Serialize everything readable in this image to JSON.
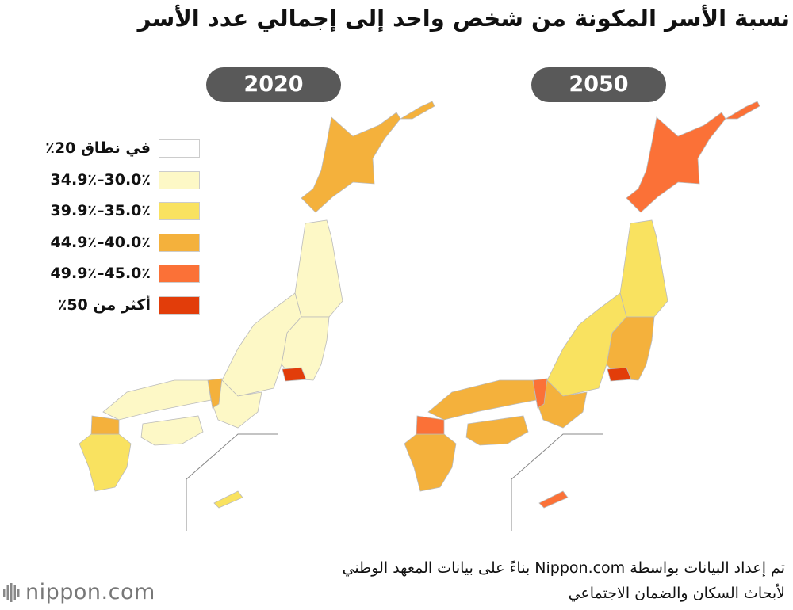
{
  "title": "نسبة الأسر المكونة من شخص واحد إلى إجمالي عدد الأسر",
  "legend": [
    {
      "label": "في نطاق 20٪",
      "color": "#ffffff"
    },
    {
      "label": "30.0٪–34.9٪",
      "color": "#fdf8c6"
    },
    {
      "label": "35.0٪–39.9٪",
      "color": "#f9e260"
    },
    {
      "label": "40.0٪–44.9٪",
      "color": "#f4b13c"
    },
    {
      "label": "45.0٪–49.9٪",
      "color": "#fb7137"
    },
    {
      "label": "أكثر من 50٪",
      "color": "#e23d0a"
    }
  ],
  "maps": [
    {
      "label": "2020",
      "regions": [
        {
          "class": 3
        },
        {
          "class": 1
        },
        {
          "class": 1
        },
        {
          "class": 5
        },
        {
          "class": 1
        },
        {
          "class": 1
        },
        {
          "class": 3
        },
        {
          "class": 1
        },
        {
          "class": 1
        },
        {
          "class": 2
        },
        {
          "class": 3
        },
        {
          "class": 2
        }
      ]
    },
    {
      "label": "2050",
      "regions": [
        {
          "class": 4
        },
        {
          "class": 2
        },
        {
          "class": 3
        },
        {
          "class": 5
        },
        {
          "class": 2
        },
        {
          "class": 3
        },
        {
          "class": 4
        },
        {
          "class": 3
        },
        {
          "class": 3
        },
        {
          "class": 3
        },
        {
          "class": 4
        },
        {
          "class": 4
        }
      ]
    }
  ],
  "source": [
    "تم إعداد البيانات بواسطة Nippon.com بناءً على بيانات المعهد الوطني",
    "لأبحاث السكان والضمان الاجتماعي"
  ],
  "logo": "nippon.com"
}
